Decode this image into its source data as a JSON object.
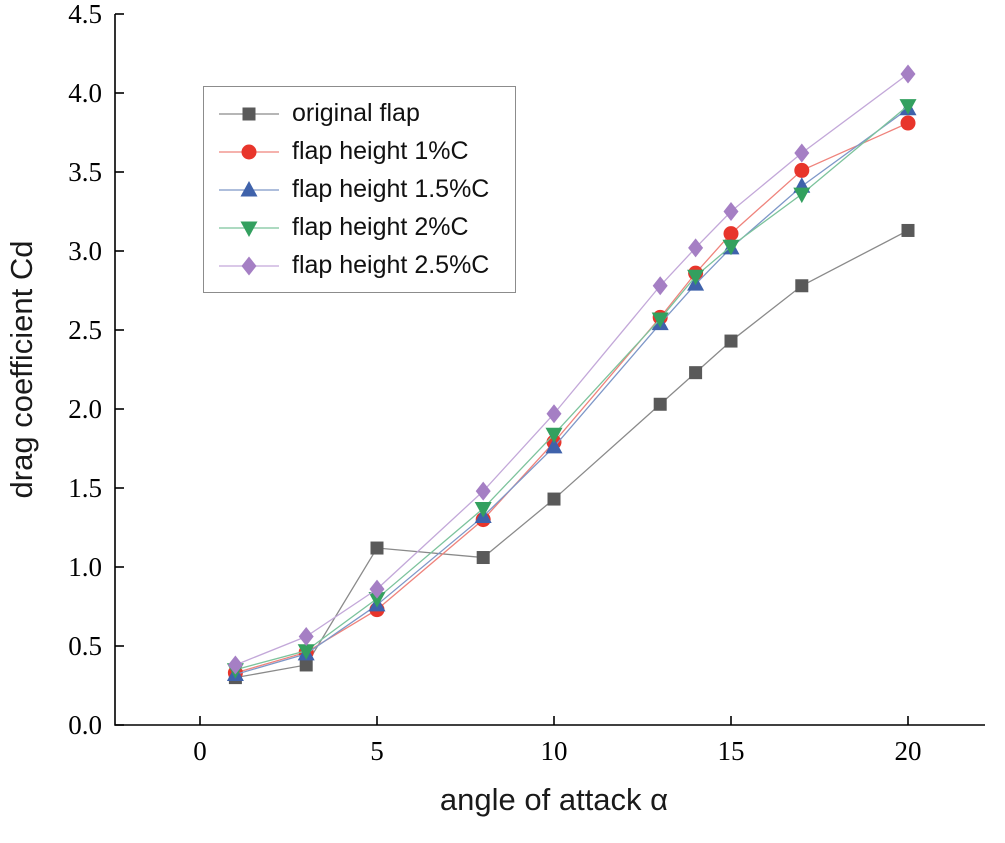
{
  "chart_data": {
    "type": "line",
    "title": "",
    "xlabel": "angle of attack α",
    "ylabel": "drag coefficient Cd",
    "grid": false,
    "legend_position": "top-left",
    "x": [
      1,
      3,
      5,
      8,
      10,
      13,
      14,
      15,
      17,
      20
    ],
    "xticks": [
      0,
      5,
      10,
      15,
      20
    ],
    "yticks": [
      0,
      0.5,
      1,
      1.5,
      2,
      2.5,
      3,
      3.5,
      4,
      4.5
    ],
    "xlim": [
      -2.4,
      22.2
    ],
    "ylim": [
      0,
      4.5
    ],
    "series": [
      {
        "name": "original flap",
        "marker": "square",
        "color": "#595959",
        "line_color": "#8a8a8a",
        "values": [
          0.3,
          0.38,
          1.12,
          1.06,
          1.43,
          2.03,
          2.23,
          2.43,
          2.78,
          3.13
        ]
      },
      {
        "name": "flap height 1%C",
        "marker": "circle",
        "color": "#e8352b",
        "line_color": "#ef837c",
        "values": [
          0.33,
          0.46,
          0.73,
          1.3,
          1.79,
          2.58,
          2.86,
          3.11,
          3.51,
          3.81
        ]
      },
      {
        "name": "flap height 1.5%C",
        "marker": "triangle-up",
        "color": "#3f62ab",
        "line_color": "#7e97c8",
        "values": [
          0.32,
          0.45,
          0.76,
          1.32,
          1.76,
          2.54,
          2.79,
          3.02,
          3.41,
          3.9
        ]
      },
      {
        "name": "flap height 2%C",
        "marker": "triangle-down",
        "color": "#33a05f",
        "line_color": "#7cc39c",
        "values": [
          0.35,
          0.47,
          0.8,
          1.37,
          1.84,
          2.57,
          2.84,
          3.03,
          3.36,
          3.92
        ]
      },
      {
        "name": "flap height 2.5%C",
        "marker": "diamond",
        "color": "#a57fc4",
        "line_color": "#c3a8d9",
        "values": [
          0.38,
          0.56,
          0.86,
          1.48,
          1.97,
          2.78,
          3.02,
          3.25,
          3.62,
          4.12
        ]
      }
    ]
  }
}
